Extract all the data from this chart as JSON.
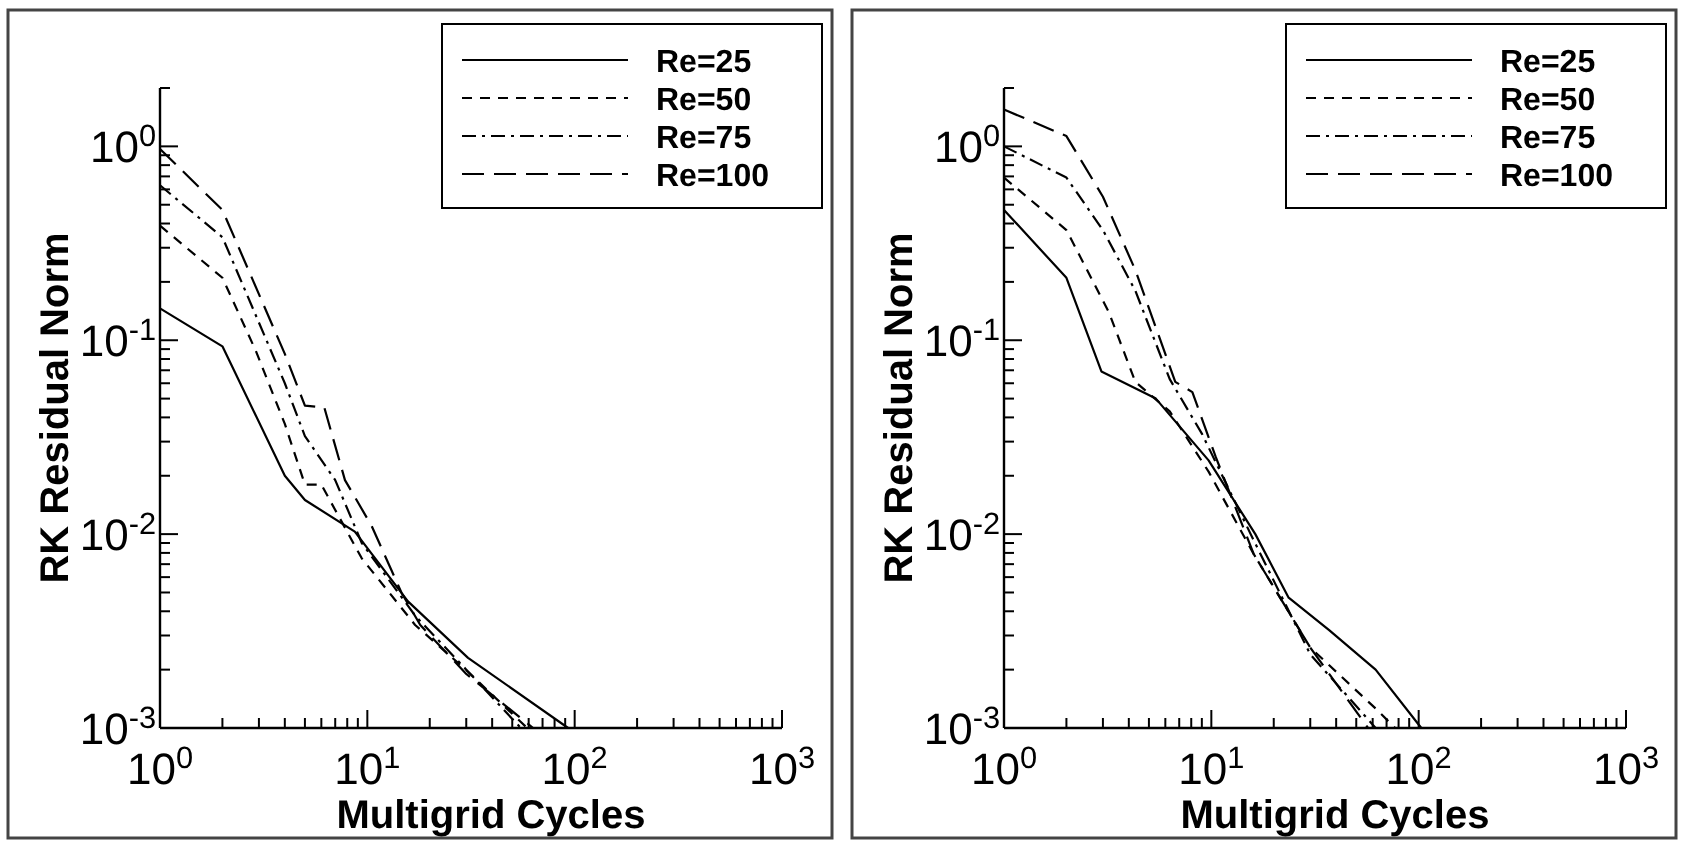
{
  "chart_data": [
    {
      "type": "line",
      "xlabel": "Multigrid Cycles",
      "ylabel": "RK Residual Norm",
      "log": "xy",
      "legend": "top right",
      "grid": false,
      "xlim": [
        1,
        1000
      ],
      "ylim": [
        0.001,
        2
      ],
      "xticks": [
        {
          "value": 1,
          "label": "10$^{0}$"
        },
        {
          "value": 2,
          "label": null
        },
        {
          "value": 3,
          "label": null
        },
        {
          "value": 4,
          "label": null
        },
        {
          "value": 5,
          "label": null
        },
        {
          "value": 6,
          "label": null
        },
        {
          "value": 7,
          "label": null
        },
        {
          "value": 8,
          "label": null
        },
        {
          "value": 9,
          "label": null
        },
        {
          "value": 10,
          "label": "10$^{1}$"
        },
        {
          "value": 20,
          "label": null
        },
        {
          "value": 30,
          "label": null
        },
        {
          "value": 40,
          "label": null
        },
        {
          "value": 50,
          "label": null
        },
        {
          "value": 60,
          "label": null
        },
        {
          "value": 70,
          "label": null
        },
        {
          "value": 80,
          "label": null
        },
        {
          "value": 90,
          "label": null
        },
        {
          "value": 100,
          "label": "10$^{2}$"
        },
        {
          "value": 200,
          "label": null
        },
        {
          "value": 300,
          "label": null
        },
        {
          "value": 400,
          "label": null
        },
        {
          "value": 500,
          "label": null
        },
        {
          "value": 600,
          "label": null
        },
        {
          "value": 700,
          "label": null
        },
        {
          "value": 800,
          "label": null
        },
        {
          "value": 900,
          "label": null
        },
        {
          "value": 1000,
          "label": "10$^{3}$"
        }
      ],
      "yticks": [
        {
          "value": 0.001,
          "label": "10$^{-3}$"
        },
        {
          "value": 0.002,
          "label": null
        },
        {
          "value": 0.003,
          "label": null
        },
        {
          "value": 0.004,
          "label": null
        },
        {
          "value": 0.005,
          "label": null
        },
        {
          "value": 0.006,
          "label": null
        },
        {
          "value": 0.007,
          "label": null
        },
        {
          "value": 0.008,
          "label": null
        },
        {
          "value": 0.009,
          "label": null
        },
        {
          "value": 0.01,
          "label": "10$^{-2}$"
        },
        {
          "value": 0.02,
          "label": null
        },
        {
          "value": 0.03,
          "label": null
        },
        {
          "value": 0.04,
          "label": null
        },
        {
          "value": 0.05,
          "label": null
        },
        {
          "value": 0.06,
          "label": null
        },
        {
          "value": 0.07,
          "label": null
        },
        {
          "value": 0.08,
          "label": null
        },
        {
          "value": 0.09,
          "label": null
        },
        {
          "value": 0.1,
          "label": "10$^{-1}$"
        },
        {
          "value": 0.2,
          "label": null
        },
        {
          "value": 0.3,
          "label": null
        },
        {
          "value": 0.4,
          "label": null
        },
        {
          "value": 0.5,
          "label": null
        },
        {
          "value": 0.6,
          "label": null
        },
        {
          "value": 0.7,
          "label": null
        },
        {
          "value": 0.8,
          "label": null
        },
        {
          "value": 0.9,
          "label": null
        },
        {
          "value": 1,
          "label": "10$^{0}$"
        },
        {
          "value": 2,
          "label": null
        }
      ],
      "series": [
        {
          "name": "Re=25",
          "color": "#000000",
          "line_style": "solid",
          "x": [
            1,
            2,
            4,
            5,
            8.7,
            15.7,
            30.6,
            93
          ],
          "values": [
            0.146,
            0.093,
            0.02,
            0.015,
            0.0103,
            0.0045,
            0.0023,
            0.001
          ]
        },
        {
          "name": "Re=50",
          "color": "#000000",
          "line_style": "dashed",
          "x": [
            1,
            2,
            2.9,
            4,
            5,
            6,
            9.4,
            17,
            30.6,
            59
          ],
          "values": [
            0.39,
            0.21,
            0.088,
            0.037,
            0.018,
            0.018,
            0.0075,
            0.0034,
            0.00195,
            0.001
          ]
        },
        {
          "name": "Re=75",
          "color": "#000000",
          "line_style": "dashdot",
          "x": [
            1,
            2,
            4,
            5,
            7,
            9.4,
            17,
            30,
            55
          ],
          "values": [
            0.63,
            0.34,
            0.06,
            0.032,
            0.019,
            0.009,
            0.0038,
            0.002,
            0.001
          ]
        },
        {
          "name": "Re=100",
          "color": "#000000",
          "line_style": "longdash",
          "x": [
            1,
            2,
            4,
            5,
            6.2,
            7.8,
            10.5,
            14.6,
            18,
            30,
            63
          ],
          "values": [
            0.97,
            0.47,
            0.085,
            0.046,
            0.045,
            0.019,
            0.011,
            0.005,
            0.0034,
            0.0019,
            0.001
          ]
        }
      ]
    },
    {
      "type": "line",
      "xlabel": "Multigrid Cycles",
      "ylabel": "RK Residual Norm",
      "log": "xy",
      "legend": "top right",
      "grid": false,
      "xlim": [
        1,
        1000
      ],
      "ylim": [
        0.001,
        2
      ],
      "xticks": [
        {
          "value": 1,
          "label": "10$^{0}$"
        },
        {
          "value": 2,
          "label": null
        },
        {
          "value": 3,
          "label": null
        },
        {
          "value": 4,
          "label": null
        },
        {
          "value": 5,
          "label": null
        },
        {
          "value": 6,
          "label": null
        },
        {
          "value": 7,
          "label": null
        },
        {
          "value": 8,
          "label": null
        },
        {
          "value": 9,
          "label": null
        },
        {
          "value": 10,
          "label": "10$^{1}$"
        },
        {
          "value": 20,
          "label": null
        },
        {
          "value": 30,
          "label": null
        },
        {
          "value": 40,
          "label": null
        },
        {
          "value": 50,
          "label": null
        },
        {
          "value": 60,
          "label": null
        },
        {
          "value": 70,
          "label": null
        },
        {
          "value": 80,
          "label": null
        },
        {
          "value": 90,
          "label": null
        },
        {
          "value": 100,
          "label": "10$^{2}$"
        },
        {
          "value": 200,
          "label": null
        },
        {
          "value": 300,
          "label": null
        },
        {
          "value": 400,
          "label": null
        },
        {
          "value": 500,
          "label": null
        },
        {
          "value": 600,
          "label": null
        },
        {
          "value": 700,
          "label": null
        },
        {
          "value": 800,
          "label": null
        },
        {
          "value": 900,
          "label": null
        },
        {
          "value": 1000,
          "label": "10$^{3}$"
        }
      ],
      "yticks": [
        {
          "value": 0.001,
          "label": "10$^{-3}$"
        },
        {
          "value": 0.002,
          "label": null
        },
        {
          "value": 0.003,
          "label": null
        },
        {
          "value": 0.004,
          "label": null
        },
        {
          "value": 0.005,
          "label": null
        },
        {
          "value": 0.006,
          "label": null
        },
        {
          "value": 0.007,
          "label": null
        },
        {
          "value": 0.008,
          "label": null
        },
        {
          "value": 0.009,
          "label": null
        },
        {
          "value": 0.01,
          "label": "10$^{-2}$"
        },
        {
          "value": 0.02,
          "label": null
        },
        {
          "value": 0.03,
          "label": null
        },
        {
          "value": 0.04,
          "label": null
        },
        {
          "value": 0.05,
          "label": null
        },
        {
          "value": 0.06,
          "label": null
        },
        {
          "value": 0.07,
          "label": null
        },
        {
          "value": 0.08,
          "label": null
        },
        {
          "value": 0.09,
          "label": null
        },
        {
          "value": 0.1,
          "label": "10$^{-1}$"
        },
        {
          "value": 0.2,
          "label": null
        },
        {
          "value": 0.3,
          "label": null
        },
        {
          "value": 0.4,
          "label": null
        },
        {
          "value": 0.5,
          "label": null
        },
        {
          "value": 0.6,
          "label": null
        },
        {
          "value": 0.7,
          "label": null
        },
        {
          "value": 0.8,
          "label": null
        },
        {
          "value": 0.9,
          "label": null
        },
        {
          "value": 1,
          "label": "10$^{0}$"
        },
        {
          "value": 2,
          "label": null
        }
      ],
      "series": [
        {
          "name": "Re=25",
          "color": "#000000",
          "line_style": "solid",
          "x": [
            1,
            2,
            2.95,
            5.4,
            9.7,
            16.3,
            23.6,
            37,
            62,
            103
          ],
          "values": [
            0.47,
            0.21,
            0.069,
            0.05,
            0.024,
            0.01,
            0.0047,
            0.0032,
            0.002,
            0.001
          ]
        },
        {
          "name": "Re=50",
          "color": "#000000",
          "line_style": "dashed",
          "x": [
            1,
            2,
            3.2,
            4.3,
            6.3,
            9.7,
            16,
            30,
            62,
            77
          ],
          "values": [
            0.69,
            0.37,
            0.14,
            0.061,
            0.043,
            0.021,
            0.0079,
            0.0026,
            0.00126,
            0.001
          ]
        },
        {
          "name": "Re=75",
          "color": "#000000",
          "line_style": "dashdot",
          "x": [
            1,
            2,
            3,
            4.3,
            6.3,
            9,
            16,
            30,
            62
          ],
          "values": [
            1.0,
            0.69,
            0.37,
            0.18,
            0.063,
            0.033,
            0.0093,
            0.0024,
            0.001
          ]
        },
        {
          "name": "Re=100",
          "color": "#000000",
          "line_style": "longdash",
          "x": [
            1,
            2,
            3,
            4.3,
            6.7,
            8.1,
            10.5,
            16,
            30,
            57
          ],
          "values": [
            1.55,
            1.13,
            0.55,
            0.23,
            0.061,
            0.054,
            0.025,
            0.0079,
            0.0026,
            0.001
          ]
        }
      ]
    }
  ]
}
